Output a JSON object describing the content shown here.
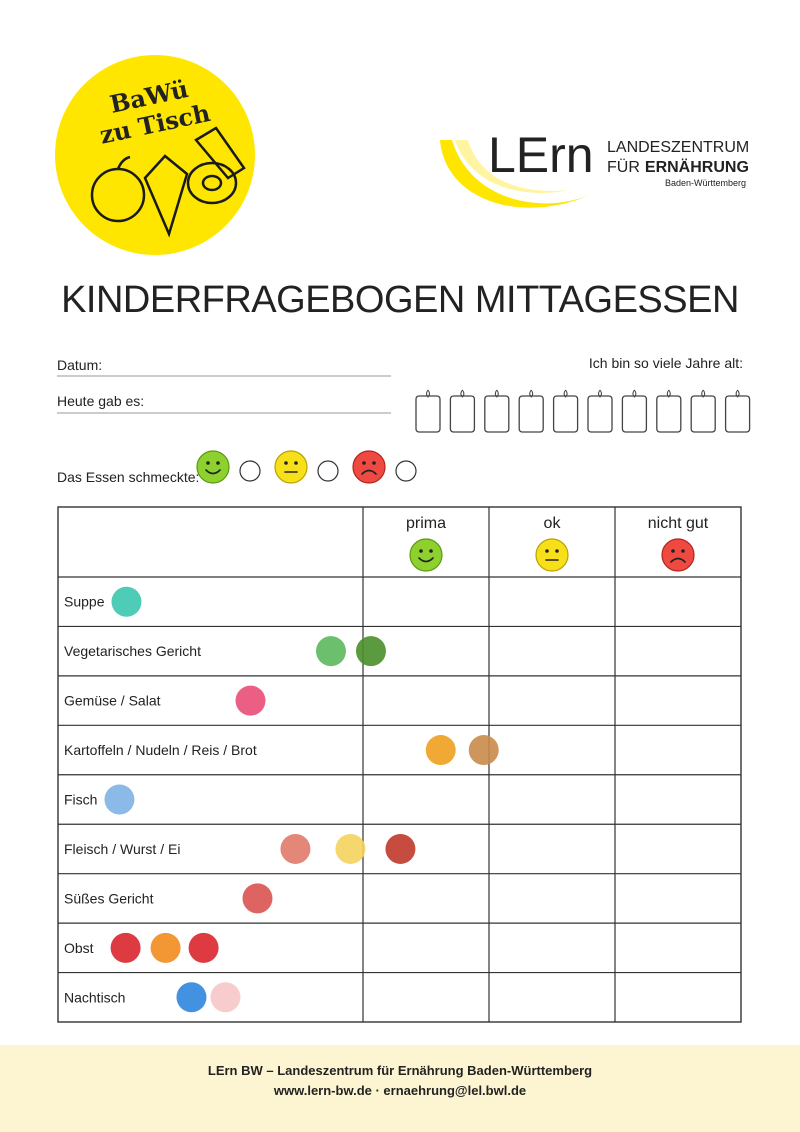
{
  "logo_badge": {
    "line1": "BaWü",
    "line2": "zu Tisch"
  },
  "logo_lern": {
    "mark": "LErn",
    "line1": "LANDESZENTRUM",
    "line2a": "FÜR",
    "line2b": "ERNÄHRUNG",
    "line3": "Baden-Württemberg"
  },
  "title": "KINDERFRAGEBOGEN MITTAGESSEN",
  "form": {
    "date_label": "Datum:",
    "meal_label": "Heute gab es:",
    "age_label": "Ich bin so viele Jahre alt:",
    "rating_label": "Das Essen schmeckte:"
  },
  "table": {
    "columns": [
      "prima",
      "ok",
      "nicht gut"
    ],
    "rows": [
      "Suppe",
      "Vegetarisches Gericht",
      "Gemüse / Salat",
      "Kartoffeln / Nudeln / Reis / Brot",
      "Fisch",
      "Fleisch / Wurst / Ei",
      "Süßes Gericht",
      "Obst",
      "Nachtisch"
    ]
  },
  "footer": {
    "line1": "LErn BW – Landeszentrum für Ernährung Baden-Württemberg",
    "line2": "www.lern-bw.de · ernaehrung@lel.bwl.de"
  }
}
